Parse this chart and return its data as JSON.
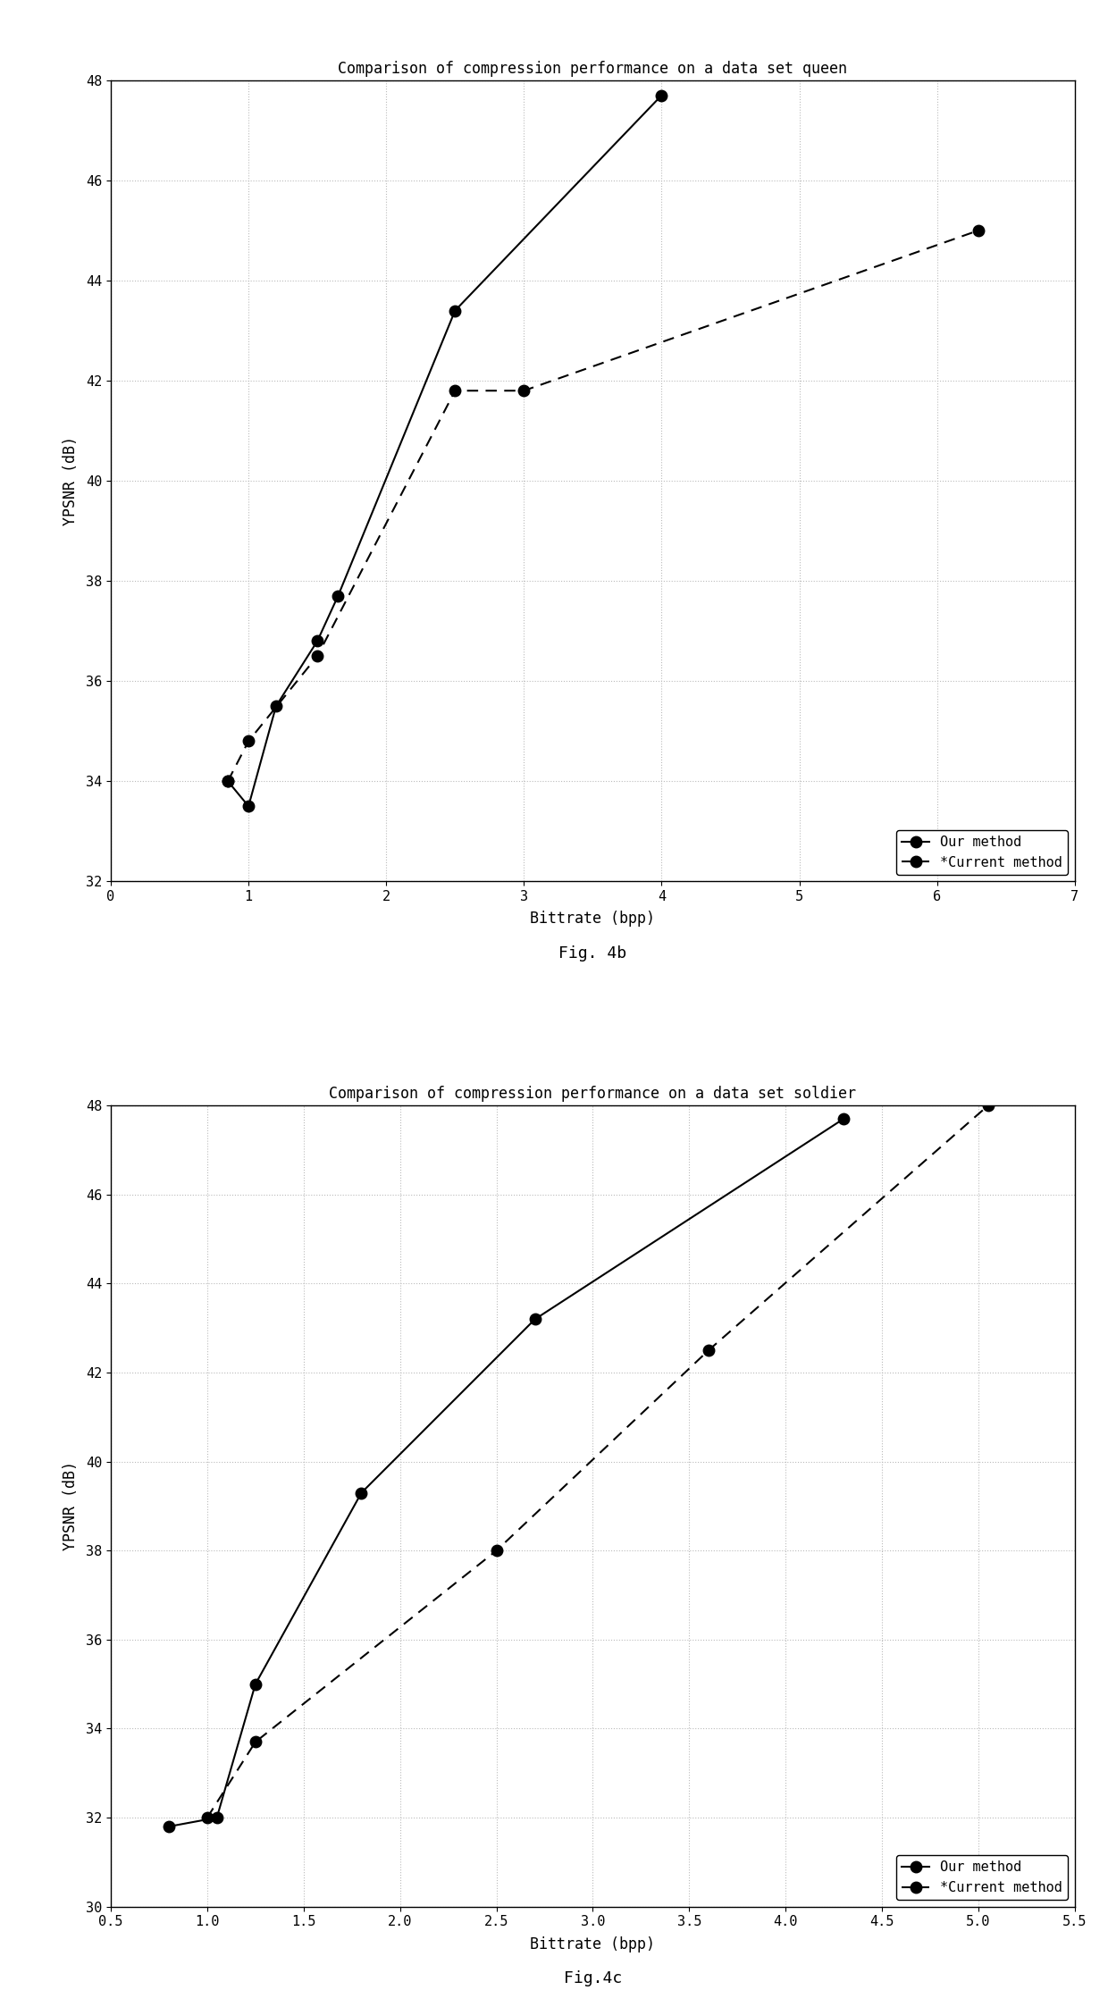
{
  "fig4b": {
    "title": "Comparison of compression performance on a data set queen",
    "xlabel": "Bittrate (bpp)",
    "ylabel": "YPSNR (dB)",
    "xlim": [
      0,
      7
    ],
    "ylim": [
      32,
      48
    ],
    "xticks": [
      0,
      1,
      2,
      3,
      4,
      5,
      6,
      7
    ],
    "yticks": [
      32,
      34,
      36,
      38,
      40,
      42,
      44,
      46,
      48
    ],
    "our_method_x": [
      0.85,
      1.0,
      1.2,
      1.5,
      1.65,
      2.5,
      4.0
    ],
    "our_method_y": [
      34.0,
      33.5,
      35.5,
      36.8,
      37.7,
      43.4,
      47.7
    ],
    "current_method_x": [
      0.85,
      1.0,
      1.5,
      2.5,
      3.0,
      6.3
    ],
    "current_method_y": [
      34.0,
      34.8,
      36.5,
      41.8,
      41.8,
      45.0
    ],
    "caption": "Fig. 4b"
  },
  "fig4c": {
    "title": "Comparison of compression performance on a data set soldier",
    "xlabel": "Bittrate (bpp)",
    "ylabel": "YPSNR (dB)",
    "xlim": [
      0.5,
      5.5
    ],
    "ylim": [
      30,
      48
    ],
    "xticks": [
      0.5,
      1.0,
      1.5,
      2.0,
      2.5,
      3.0,
      3.5,
      4.0,
      4.5,
      5.0,
      5.5
    ],
    "yticks": [
      30,
      32,
      34,
      36,
      38,
      40,
      42,
      44,
      46,
      48
    ],
    "our_method_x": [
      0.8,
      1.05,
      1.25,
      1.8,
      2.7,
      4.3
    ],
    "our_method_y": [
      31.8,
      32.0,
      35.0,
      39.3,
      43.2,
      47.7
    ],
    "current_method_x": [
      1.0,
      1.25,
      2.5,
      3.6,
      5.05
    ],
    "current_method_y": [
      32.0,
      33.7,
      38.0,
      42.5,
      48.0
    ],
    "caption": "Fig.4c"
  },
  "line_color": "#000000",
  "marker_style": "o",
  "marker_size": 9,
  "marker_color": "#000000",
  "our_linestyle": "-",
  "grid_color": "#bbbbbb",
  "bg_color": "#ffffff",
  "legend_our": "Our method",
  "legend_current": "*Current method",
  "font_family": "monospace",
  "title_fontsize": 12,
  "label_fontsize": 12,
  "tick_fontsize": 11,
  "legend_fontsize": 11
}
